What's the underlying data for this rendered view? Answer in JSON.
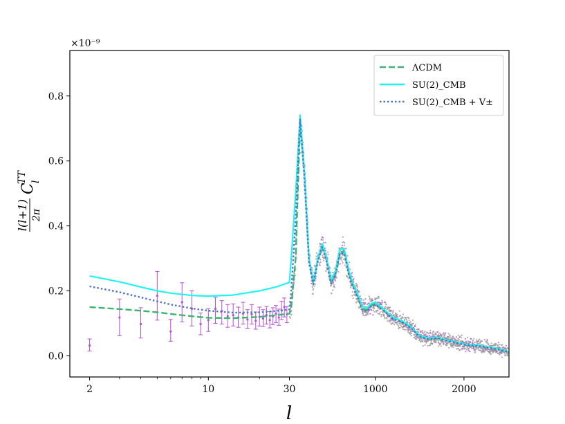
{
  "chart_data": {
    "type": "line",
    "xlabel": "l",
    "ylabel": "l(l+1)/2π C_l^TT",
    "y_scale_label": "×10⁻⁹",
    "x_scale": "log below l=30, linear above",
    "x_ticks": [
      {
        "value": 2,
        "label": "2"
      },
      {
        "value": 10,
        "label": "10"
      },
      {
        "value": 30,
        "label": "30"
      },
      {
        "value": 1000,
        "label": "1000"
      },
      {
        "value": 2000,
        "label": "2000"
      }
    ],
    "y_ticks": [
      {
        "value": 0.0,
        "label": "0.0"
      },
      {
        "value": 0.2,
        "label": "0.2"
      },
      {
        "value": 0.4,
        "label": "0.4"
      },
      {
        "value": 0.6,
        "label": "0.6"
      },
      {
        "value": 0.8,
        "label": "0.8"
      }
    ],
    "xlim": [
      1.53,
      2508
    ],
    "ylim": [
      -0.065,
      0.94
    ],
    "legend_position": "top-right",
    "series": [
      {
        "name": "ΛCDM",
        "style": "dashed",
        "color": "#3cb371",
        "x": [
          2,
          3,
          4,
          5,
          6,
          8,
          10,
          14,
          20,
          25,
          30,
          50,
          100,
          150,
          200,
          250,
          300,
          350,
          400,
          450,
          500,
          550,
          600,
          650,
          700,
          750,
          800,
          850,
          900,
          950,
          1000,
          1100,
          1200,
          1300,
          1400,
          1500,
          1600,
          1700,
          1800,
          1900,
          2000,
          2200,
          2400,
          2500
        ],
        "y": [
          0.15,
          0.144,
          0.139,
          0.134,
          0.129,
          0.122,
          0.117,
          0.116,
          0.12,
          0.125,
          0.13,
          0.15,
          0.3,
          0.72,
          0.56,
          0.3,
          0.224,
          0.3,
          0.34,
          0.3,
          0.225,
          0.255,
          0.32,
          0.32,
          0.255,
          0.215,
          0.185,
          0.145,
          0.14,
          0.155,
          0.16,
          0.14,
          0.115,
          0.106,
          0.088,
          0.06,
          0.052,
          0.055,
          0.048,
          0.042,
          0.035,
          0.03,
          0.02,
          0.012
        ]
      },
      {
        "name": "SU(2)_CMB",
        "style": "solid",
        "color": "#22f2f2",
        "x": [
          2,
          3,
          4,
          5,
          6,
          8,
          10,
          14,
          20,
          25,
          30,
          50,
          100,
          150,
          200,
          250,
          300,
          350,
          400,
          450,
          500,
          550,
          600,
          650,
          700,
          750,
          800,
          850,
          900,
          950,
          1000,
          1100,
          1200,
          1300,
          1400,
          1500,
          1600,
          1700,
          1800,
          1900,
          2000,
          2200,
          2400,
          2500
        ],
        "y": [
          0.246,
          0.228,
          0.212,
          0.2,
          0.193,
          0.186,
          0.184,
          0.187,
          0.2,
          0.212,
          0.226,
          0.3,
          0.5,
          0.74,
          0.56,
          0.3,
          0.228,
          0.3,
          0.345,
          0.3,
          0.232,
          0.262,
          0.33,
          0.328,
          0.262,
          0.22,
          0.19,
          0.152,
          0.146,
          0.16,
          0.166,
          0.142,
          0.118,
          0.108,
          0.09,
          0.062,
          0.054,
          0.057,
          0.049,
          0.043,
          0.036,
          0.031,
          0.021,
          0.012
        ]
      },
      {
        "name": "SU(2)_CMB + V±",
        "style": "dotted",
        "color": "#4f72c6",
        "x": [
          2,
          3,
          4,
          5,
          6,
          8,
          10,
          14,
          20,
          25,
          30,
          50,
          100,
          150,
          200,
          250,
          300,
          350,
          400,
          450,
          500,
          550,
          600,
          650,
          700,
          750,
          800,
          850,
          900,
          950,
          1000,
          1100,
          1200,
          1300,
          1400,
          1500,
          1600,
          1700,
          1800,
          1900,
          2000,
          2200,
          2400,
          2500
        ],
        "y": [
          0.214,
          0.196,
          0.18,
          0.168,
          0.158,
          0.146,
          0.139,
          0.133,
          0.134,
          0.138,
          0.143,
          0.2,
          0.42,
          0.73,
          0.545,
          0.29,
          0.22,
          0.29,
          0.335,
          0.29,
          0.222,
          0.25,
          0.315,
          0.315,
          0.25,
          0.21,
          0.18,
          0.142,
          0.137,
          0.152,
          0.157,
          0.138,
          0.113,
          0.104,
          0.086,
          0.059,
          0.051,
          0.054,
          0.047,
          0.041,
          0.034,
          0.029,
          0.019,
          0.011
        ]
      }
    ],
    "low_l_errorbars": {
      "color": "#b24fd4",
      "points": [
        {
          "x": 2,
          "y": 0.032,
          "lo": 0.015,
          "hi": 0.052
        },
        {
          "x": 3,
          "y": 0.118,
          "lo": 0.062,
          "hi": 0.175
        },
        {
          "x": 4,
          "y": 0.098,
          "lo": 0.055,
          "hi": 0.148
        },
        {
          "x": 5,
          "y": 0.185,
          "lo": 0.11,
          "hi": 0.26
        },
        {
          "x": 6,
          "y": 0.075,
          "lo": 0.045,
          "hi": 0.112
        },
        {
          "x": 7,
          "y": 0.165,
          "lo": 0.105,
          "hi": 0.225
        },
        {
          "x": 8,
          "y": 0.145,
          "lo": 0.092,
          "hi": 0.2
        },
        {
          "x": 9,
          "y": 0.098,
          "lo": 0.065,
          "hi": 0.132
        },
        {
          "x": 10,
          "y": 0.11,
          "lo": 0.075,
          "hi": 0.145
        },
        {
          "x": 11,
          "y": 0.145,
          "lo": 0.1,
          "hi": 0.18
        },
        {
          "x": 12,
          "y": 0.138,
          "lo": 0.098,
          "hi": 0.17
        },
        {
          "x": 13,
          "y": 0.122,
          "lo": 0.088,
          "hi": 0.158
        },
        {
          "x": 14,
          "y": 0.125,
          "lo": 0.092,
          "hi": 0.16
        },
        {
          "x": 15,
          "y": 0.118,
          "lo": 0.088,
          "hi": 0.15
        },
        {
          "x": 16,
          "y": 0.13,
          "lo": 0.098,
          "hi": 0.165
        },
        {
          "x": 17,
          "y": 0.112,
          "lo": 0.085,
          "hi": 0.142
        },
        {
          "x": 18,
          "y": 0.128,
          "lo": 0.098,
          "hi": 0.158
        },
        {
          "x": 19,
          "y": 0.108,
          "lo": 0.082,
          "hi": 0.135
        },
        {
          "x": 20,
          "y": 0.12,
          "lo": 0.092,
          "hi": 0.15
        },
        {
          "x": 21,
          "y": 0.115,
          "lo": 0.09,
          "hi": 0.142
        },
        {
          "x": 22,
          "y": 0.125,
          "lo": 0.098,
          "hi": 0.152
        },
        {
          "x": 23,
          "y": 0.11,
          "lo": 0.086,
          "hi": 0.136
        },
        {
          "x": 24,
          "y": 0.122,
          "lo": 0.096,
          "hi": 0.148
        },
        {
          "x": 25,
          "y": 0.13,
          "lo": 0.102,
          "hi": 0.155
        },
        {
          "x": 26,
          "y": 0.118,
          "lo": 0.094,
          "hi": 0.144
        },
        {
          "x": 27,
          "y": 0.14,
          "lo": 0.112,
          "hi": 0.168
        },
        {
          "x": 28,
          "y": 0.15,
          "lo": 0.12,
          "hi": 0.178
        },
        {
          "x": 29,
          "y": 0.128,
          "lo": 0.102,
          "hi": 0.152
        }
      ]
    },
    "high_l_scatter": {
      "color": "#9a9a9a",
      "x_range": [
        30,
        2500
      ],
      "note": "dense binned data points scattered around the model curves"
    }
  }
}
